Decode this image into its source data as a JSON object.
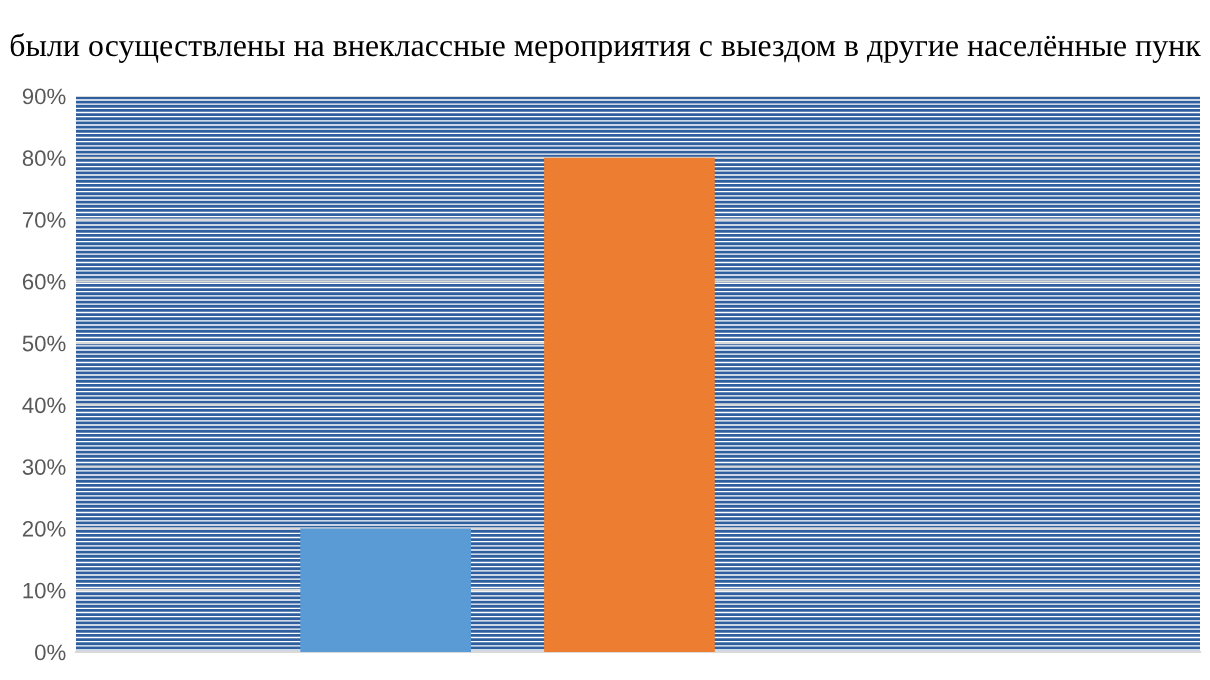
{
  "chart_data": {
    "type": "bar",
    "title": "были осуществлены на внеклассные мероприятия с выездом в другие населённые пунк",
    "categories": [
      null,
      null
    ],
    "values": [
      20,
      80
    ],
    "colors": [
      "#5b9bd5",
      "#ed7d31"
    ],
    "ylim": [
      0,
      90
    ],
    "yticks": [
      {
        "value": 0,
        "label": "0%"
      },
      {
        "value": 10,
        "label": "10%"
      },
      {
        "value": 20,
        "label": "20%"
      },
      {
        "value": 30,
        "label": "30%"
      },
      {
        "value": 40,
        "label": "40%"
      },
      {
        "value": 50,
        "label": "50%"
      },
      {
        "value": 60,
        "label": "60%"
      },
      {
        "value": 70,
        "label": "70%"
      },
      {
        "value": 80,
        "label": "80%"
      },
      {
        "value": 90,
        "label": "90%"
      }
    ],
    "grid": "y",
    "legend": false
  }
}
